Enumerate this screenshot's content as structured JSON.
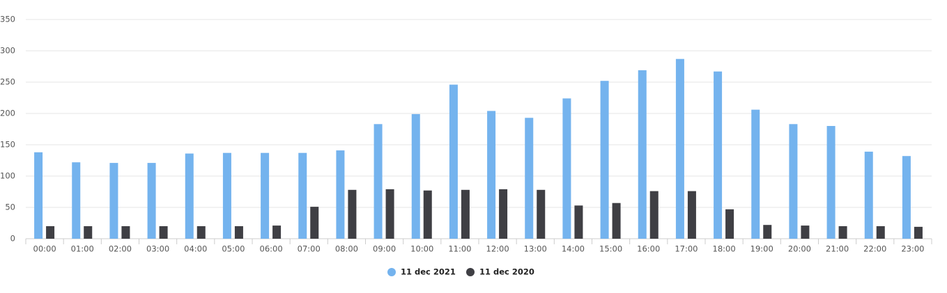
{
  "chart_data": {
    "type": "bar",
    "categories": [
      "00:00",
      "01:00",
      "02:00",
      "03:00",
      "04:00",
      "05:00",
      "06:00",
      "07:00",
      "08:00",
      "09:00",
      "10:00",
      "11:00",
      "12:00",
      "13:00",
      "14:00",
      "15:00",
      "16:00",
      "17:00",
      "18:00",
      "19:00",
      "20:00",
      "21:00",
      "22:00",
      "23:00"
    ],
    "series": [
      {
        "name": "11 dec 2021",
        "color": "#74b3ee",
        "values": [
          138,
          122,
          121,
          121,
          136,
          137,
          137,
          137,
          141,
          183,
          199,
          246,
          204,
          193,
          224,
          252,
          269,
          287,
          267,
          206,
          183,
          180,
          139,
          132
        ]
      },
      {
        "name": "11 dec 2020",
        "color": "#3f3f44",
        "values": [
          20,
          20,
          20,
          20,
          20,
          20,
          21,
          51,
          78,
          79,
          77,
          78,
          79,
          78,
          53,
          57,
          76,
          76,
          47,
          22,
          21,
          20,
          20,
          19
        ]
      }
    ],
    "ylim": [
      0,
      350
    ],
    "yticks": [
      0,
      50,
      100,
      150,
      200,
      250,
      300,
      350
    ],
    "grid": true,
    "legend": "bottom"
  }
}
